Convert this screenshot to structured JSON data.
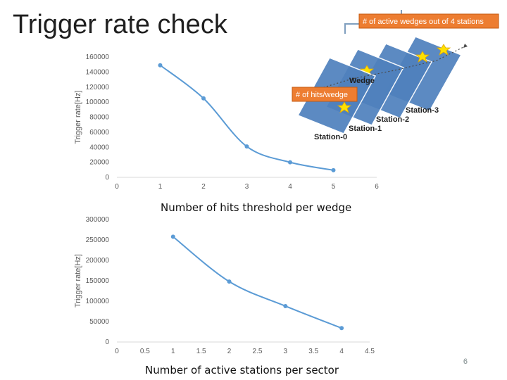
{
  "slide": {
    "title": "Trigger rate check",
    "page_number": "6"
  },
  "colors": {
    "line": "#5b9bd5",
    "label_box": "#ed7d31",
    "wedge": "#4f81bd",
    "star": "#ffe100"
  },
  "diagram": {
    "callout_wedges": "# of active wedges out of 4 stations",
    "callout_hits": "# of hits/wedge",
    "wedge_label": "Wedge",
    "stations": [
      "Station-0",
      "Station-1",
      "Station-2",
      "Station-3"
    ]
  },
  "chart_data": [
    {
      "type": "line",
      "title": "",
      "xlabel": "Number of hits threshold per wedge",
      "ylabel": "Trigger rate[Hz]",
      "xlim": [
        0,
        6
      ],
      "ylim": [
        0,
        160000
      ],
      "xticks": [
        "0",
        "1",
        "2",
        "3",
        "4",
        "5",
        "6"
      ],
      "yticks": [
        "0",
        "20000",
        "40000",
        "60000",
        "80000",
        "100000",
        "120000",
        "140000",
        "160000"
      ],
      "x": [
        1,
        2,
        3,
        4,
        5
      ],
      "series": [
        {
          "values": [
            149000,
            105000,
            41000,
            20000,
            9500
          ]
        }
      ],
      "grid": false,
      "legend": "none"
    },
    {
      "type": "line",
      "title": "",
      "xlabel": "Number of active stations per sector",
      "ylabel": "Trigger rate[Hz]",
      "xlim": [
        0,
        4.5
      ],
      "ylim": [
        0,
        300000
      ],
      "xticks": [
        "0",
        "0.5",
        "1",
        "1.5",
        "2",
        "2.5",
        "3",
        "3.5",
        "4",
        "4.5"
      ],
      "yticks": [
        "0",
        "50000",
        "100000",
        "150000",
        "200000",
        "250000",
        "300000"
      ],
      "x": [
        1,
        2,
        3,
        4
      ],
      "series": [
        {
          "values": [
            258000,
            148000,
            88000,
            34000
          ]
        }
      ],
      "grid": false,
      "legend": "none"
    }
  ]
}
